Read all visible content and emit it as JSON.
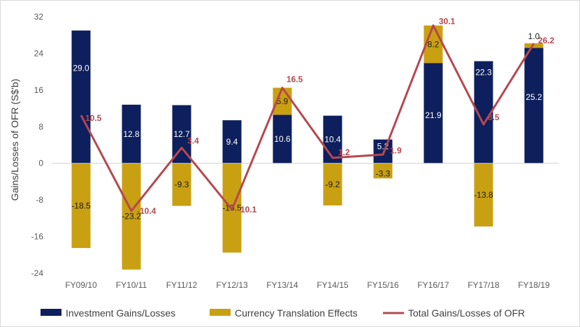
{
  "chart_data": {
    "type": "bar",
    "stacked": true,
    "categories": [
      "FY09/10",
      "FY10/11",
      "FY11/12",
      "FY12/13",
      "FY13/14",
      "FY14/15",
      "FY15/16",
      "FY16/17",
      "FY17/18",
      "FY18/19"
    ],
    "series": [
      {
        "name": "Investment Gains/Losses",
        "values": [
          29.0,
          12.8,
          12.7,
          9.4,
          10.6,
          10.4,
          5.2,
          21.9,
          22.3,
          25.2
        ],
        "labels": [
          "29.0",
          "12.8",
          "12.7",
          "9.4",
          "10.6",
          "10.4",
          "5.2",
          "21.9",
          "22.3",
          "25.2"
        ],
        "color": "#0d1f5c"
      },
      {
        "name": "Currency Translation Effects",
        "values": [
          -18.5,
          -23.2,
          -9.3,
          -19.5,
          5.9,
          -9.2,
          -3.3,
          8.2,
          -13.8,
          1.0
        ],
        "labels": [
          "-18.5",
          "-23.2",
          "-9.3",
          "-19.5",
          "5.9",
          "-9.2",
          "-3.3",
          "8.2",
          "-13.8",
          "1.0"
        ],
        "color": "#c9a012"
      },
      {
        "name": "Total Gains/Losses of OFR",
        "type": "line",
        "values": [
          10.5,
          -10.4,
          3.4,
          -10.1,
          16.5,
          1.2,
          1.9,
          30.1,
          8.5,
          26.2
        ],
        "labels": [
          "10.5",
          "-10.4",
          "3.4",
          "-10.1",
          "16.5",
          "1.2",
          "1.9",
          "30.1",
          "8.5",
          "26.2"
        ],
        "color": "#b5484f"
      }
    ],
    "ylabel": "Gains/Losses of OFR (S$'b)",
    "ylim": [
      -24,
      32
    ],
    "yticks": [
      -24,
      -16,
      -8,
      0,
      8,
      16,
      24,
      32
    ],
    "grid": false,
    "legend": "bottom"
  }
}
